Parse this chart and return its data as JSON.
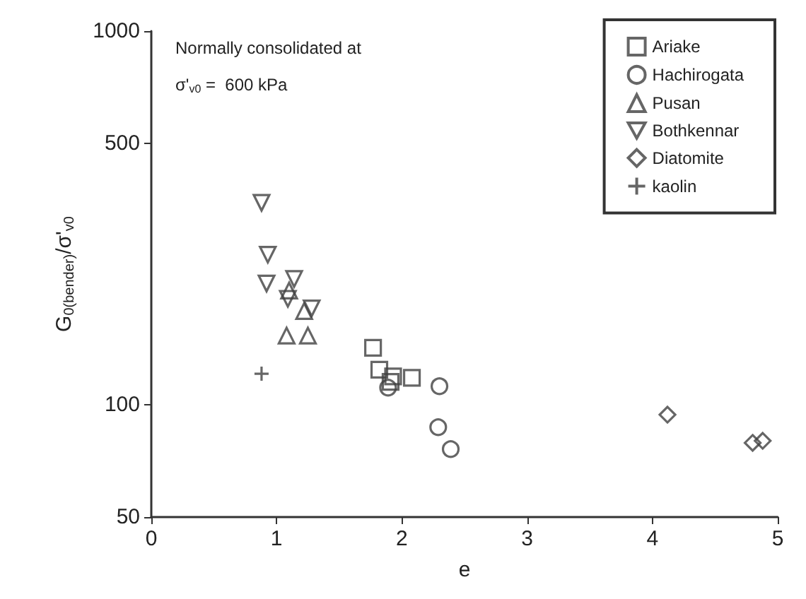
{
  "chart_data": {
    "type": "scatter",
    "xlabel": "e",
    "ylabel": "G$_{0(bender)}$/σ'$_{v0}$",
    "log": "y",
    "xlim": [
      0,
      5
    ],
    "xticks": [
      0,
      1,
      2,
      3,
      4,
      5
    ],
    "ylim": [
      50,
      1000
    ],
    "yticks": [
      50,
      100,
      500,
      1000
    ],
    "grid": false,
    "legend": "top right",
    "annotations": [
      "Normally consolidated at",
      "σ'$_{v0}$ =  600 kPa"
    ],
    "series": [
      {
        "name": "Ariake",
        "color": "#404040",
        "marker": "square",
        "x": [
          1.77,
          1.82,
          1.93,
          2.08,
          1.91
        ],
        "values": [
          142,
          124,
          119,
          118,
          115
        ]
      },
      {
        "name": "Hachirogata",
        "color": "#404040",
        "marker": "circle",
        "x": [
          1.89,
          2.3,
          2.29,
          2.39
        ],
        "values": [
          111,
          112,
          87,
          76
        ]
      },
      {
        "name": "Pusan",
        "color": "#404040",
        "marker": "triangle",
        "x": [
          1.1,
          1.22,
          1.08,
          1.25
        ],
        "values": [
          202,
          178,
          153,
          153
        ]
      },
      {
        "name": "Bothkennar",
        "color": "#404040",
        "marker": "triangle-down",
        "x": [
          0.88,
          0.93,
          0.92,
          1.14,
          1.09,
          1.28
        ],
        "values": [
          347,
          252,
          211,
          217,
          192,
          181
        ]
      },
      {
        "name": "Diatomite",
        "color": "#404040",
        "marker": "diamond",
        "x": [
          4.12,
          4.8,
          4.88
        ],
        "values": [
          94,
          79,
          80
        ]
      },
      {
        "name": "kaolin",
        "color": "#404040",
        "marker": "cross",
        "x": [
          0.88
        ],
        "values": [
          121
        ]
      }
    ]
  }
}
